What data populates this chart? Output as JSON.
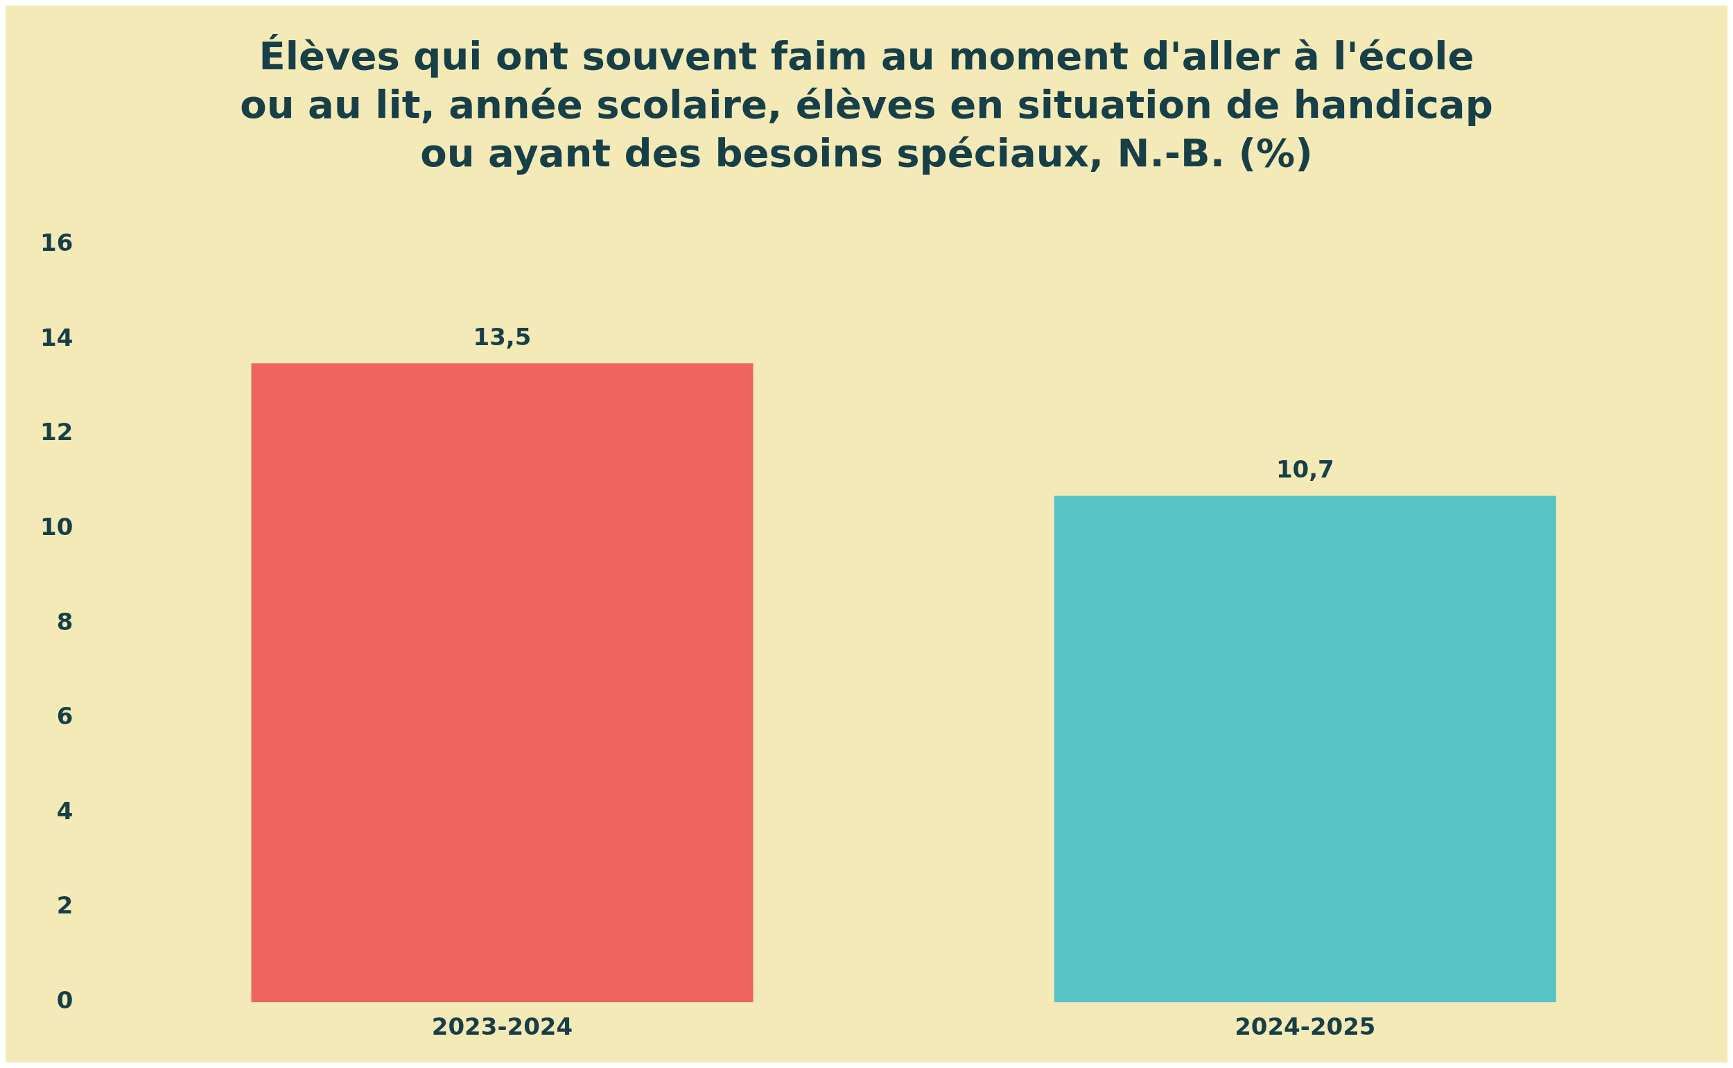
{
  "chart_data": {
    "type": "bar",
    "title": "Élèves qui ont souvent faim au moment d'aller à l'école ou au lit, année scolaire, élèves en situation de handicap ou ayant des besoins spéciaux, N.-B. (%)",
    "categories": [
      "2023-2024",
      "2024-2025"
    ],
    "values": [
      13.5,
      10.7
    ],
    "colors": [
      "#f0645e",
      "#58c3c6"
    ],
    "value_labels": [
      "13,5",
      "10,7"
    ],
    "ylim": [
      0,
      16
    ],
    "yticks": [
      0,
      2,
      4,
      6,
      8,
      10,
      12,
      14,
      16
    ],
    "grid": false,
    "legend": false
  }
}
